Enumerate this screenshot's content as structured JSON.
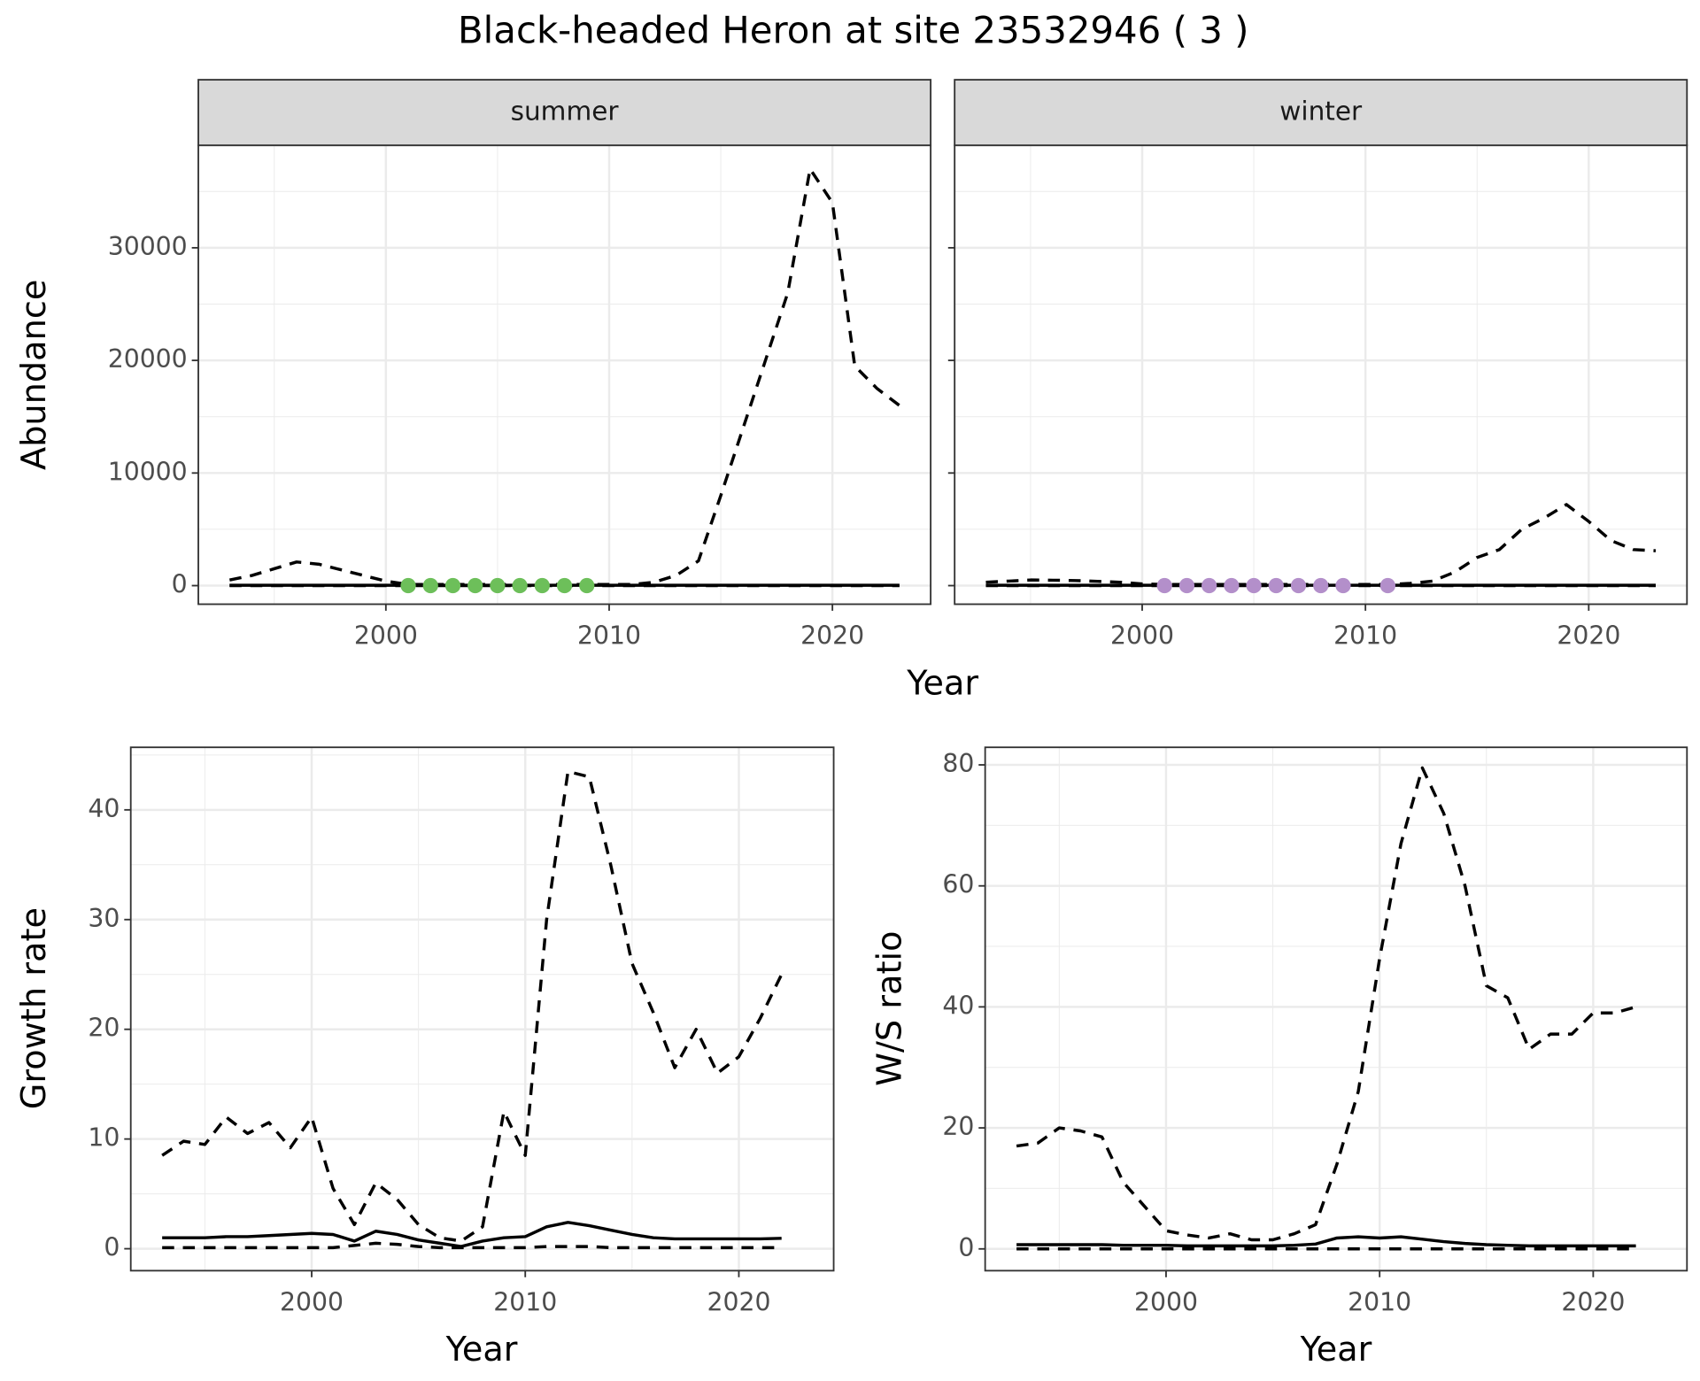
{
  "title": "Black-headed Heron at site 23532946 ( 3 )",
  "chart_data": [
    {
      "type": "line",
      "strip": "summer",
      "ylabel": "Abundance",
      "xlabel": "Year",
      "y_labels": true,
      "xlim": [
        1991.6,
        2024.4
      ],
      "ylim": [
        -1650,
        39100
      ],
      "xticks": [
        2000,
        2010,
        2020
      ],
      "yticks": [
        0,
        10000,
        20000,
        30000
      ],
      "minor_xticks": [
        1995,
        2005,
        2015
      ],
      "minor_yticks": [
        5000,
        15000,
        25000,
        35000
      ],
      "x": [
        1993,
        1994,
        1995,
        1996,
        1997,
        1998,
        1999,
        2000,
        2001,
        2002,
        2003,
        2004,
        2005,
        2006,
        2007,
        2008,
        2009,
        2010,
        2011,
        2012,
        2013,
        2014,
        2015,
        2016,
        2017,
        2018,
        2019,
        2020,
        2021,
        2022,
        2023
      ],
      "series": [
        {
          "color": "#000000",
          "dash": false,
          "values": [
            30,
            30,
            30,
            30,
            30,
            30,
            30,
            30,
            30,
            30,
            30,
            30,
            30,
            30,
            30,
            30,
            30,
            30,
            30,
            30,
            30,
            30,
            30,
            30,
            30,
            30,
            30,
            30,
            30,
            30,
            30
          ]
        },
        {
          "color": "#000000",
          "dash": true,
          "values": [
            500,
            900,
            1500,
            2100,
            1900,
            1400,
            900,
            400,
            100,
            100,
            100,
            100,
            100,
            100,
            100,
            100,
            100,
            100,
            100,
            300,
            900,
            2200,
            8000,
            14000,
            20000,
            26000,
            37000,
            34000,
            19500,
            17500,
            16000
          ]
        },
        {
          "color": "#000000",
          "dash": true,
          "values": [
            0,
            0,
            0,
            0,
            0,
            0,
            0,
            0,
            0,
            0,
            0,
            0,
            0,
            0,
            0,
            0,
            0,
            0,
            0,
            0,
            0,
            0,
            0,
            0,
            0,
            0,
            0,
            0,
            0,
            0,
            0
          ]
        }
      ],
      "points": {
        "color": "#6dbf5a",
        "x": [
          2001,
          2002,
          2003,
          2004,
          2005,
          2006,
          2007,
          2008,
          2009
        ],
        "values": [
          0,
          0,
          0,
          0,
          0,
          0,
          0,
          0,
          0
        ]
      }
    },
    {
      "type": "line",
      "strip": "winter",
      "y_labels": false,
      "xlim": [
        1991.6,
        2024.4
      ],
      "ylim": [
        -1650,
        39100
      ],
      "xticks": [
        2000,
        2010,
        2020
      ],
      "yticks": [
        0,
        10000,
        20000,
        30000
      ],
      "minor_xticks": [
        1995,
        2005,
        2015
      ],
      "minor_yticks": [
        5000,
        15000,
        25000,
        35000
      ],
      "x": [
        1993,
        1994,
        1995,
        1996,
        1997,
        1998,
        1999,
        2000,
        2001,
        2002,
        2003,
        2004,
        2005,
        2006,
        2007,
        2008,
        2009,
        2010,
        2011,
        2012,
        2013,
        2014,
        2015,
        2016,
        2017,
        2018,
        2019,
        2020,
        2021,
        2022,
        2023
      ],
      "series": [
        {
          "color": "#000000",
          "dash": false,
          "values": [
            30,
            30,
            30,
            30,
            30,
            30,
            30,
            30,
            30,
            30,
            30,
            30,
            30,
            30,
            30,
            30,
            30,
            30,
            30,
            30,
            30,
            30,
            30,
            30,
            30,
            30,
            30,
            30,
            30,
            30,
            30
          ]
        },
        {
          "color": "#000000",
          "dash": true,
          "values": [
            300,
            400,
            500,
            480,
            450,
            380,
            300,
            150,
            100,
            100,
            100,
            100,
            100,
            100,
            100,
            100,
            100,
            100,
            100,
            200,
            400,
            1200,
            2500,
            3200,
            5000,
            6000,
            7200,
            5700,
            4000,
            3200,
            3100
          ]
        },
        {
          "color": "#000000",
          "dash": true,
          "values": [
            0,
            0,
            0,
            0,
            0,
            0,
            0,
            0,
            0,
            0,
            0,
            0,
            0,
            0,
            0,
            0,
            0,
            0,
            0,
            0,
            0,
            0,
            0,
            0,
            0,
            0,
            0,
            0,
            0,
            0,
            0
          ]
        }
      ],
      "points": {
        "color": "#b38fca",
        "x": [
          2001,
          2002,
          2003,
          2004,
          2005,
          2006,
          2007,
          2008,
          2009,
          2011
        ],
        "values": [
          0,
          0,
          0,
          0,
          0,
          0,
          0,
          0,
          0,
          0
        ]
      }
    },
    {
      "type": "line",
      "ylabel": "Growth rate",
      "xlabel": "Year",
      "y_labels": true,
      "xlim": [
        1991.53,
        2024.44
      ],
      "ylim": [
        -2,
        45.7
      ],
      "xticks": [
        2000,
        2010,
        2020
      ],
      "yticks": [
        0,
        10,
        20,
        30,
        40
      ],
      "minor_xticks": [
        1995,
        2005,
        2015
      ],
      "minor_yticks": [
        5,
        15,
        25,
        35,
        45
      ],
      "x": [
        1993,
        1994,
        1995,
        1996,
        1997,
        1998,
        1999,
        2000,
        2001,
        2002,
        2003,
        2004,
        2005,
        2006,
        2007,
        2008,
        2009,
        2010,
        2011,
        2012,
        2013,
        2014,
        2015,
        2016,
        2017,
        2018,
        2019,
        2020,
        2021,
        2022
      ],
      "series": [
        {
          "color": "#000000",
          "dash": false,
          "values": [
            1.0,
            1.0,
            1.0,
            1.1,
            1.1,
            1.2,
            1.3,
            1.4,
            1.3,
            0.7,
            1.6,
            1.3,
            0.8,
            0.5,
            0.2,
            0.7,
            1.0,
            1.1,
            2.0,
            2.4,
            2.1,
            1.7,
            1.3,
            1.0,
            0.9,
            0.9,
            0.9,
            0.9,
            0.9,
            0.95
          ]
        },
        {
          "color": "#000000",
          "dash": true,
          "values": [
            8.5,
            9.8,
            9.5,
            12,
            10.5,
            11.5,
            9.2,
            12,
            5.5,
            2.2,
            6,
            4.5,
            2.2,
            1.0,
            0.7,
            2,
            12.5,
            8.5,
            30,
            43.5,
            43,
            35,
            26,
            21.5,
            16.5,
            20,
            16,
            17.5,
            21,
            25
          ]
        },
        {
          "color": "#000000",
          "dash": true,
          "values": [
            0.1,
            0.1,
            0.1,
            0.1,
            0.1,
            0.1,
            0.1,
            0.1,
            0.1,
            0.3,
            0.5,
            0.4,
            0.2,
            0.1,
            0.1,
            0.1,
            0.1,
            0.1,
            0.2,
            0.2,
            0.2,
            0.1,
            0.1,
            0.1,
            0.1,
            0.1,
            0.1,
            0.1,
            0.1,
            0.1
          ]
        }
      ]
    },
    {
      "type": "line",
      "ylabel": "W/S ratio",
      "xlabel": "Year",
      "y_labels": true,
      "xlim": [
        1991.53,
        2024.39
      ],
      "ylim": [
        -3.6,
        82.9
      ],
      "xticks": [
        2000,
        2010,
        2020
      ],
      "yticks": [
        0,
        20,
        40,
        60,
        80
      ],
      "minor_xticks": [
        1995,
        2005,
        2015
      ],
      "minor_yticks": [
        10,
        30,
        50,
        70
      ],
      "x": [
        1993,
        1994,
        1995,
        1996,
        1997,
        1998,
        1999,
        2000,
        2001,
        2002,
        2003,
        2004,
        2005,
        2006,
        2007,
        2008,
        2009,
        2010,
        2011,
        2012,
        2013,
        2014,
        2015,
        2016,
        2017,
        2018,
        2019,
        2020,
        2021,
        2022
      ],
      "series": [
        {
          "color": "#000000",
          "dash": false,
          "values": [
            0.7,
            0.7,
            0.7,
            0.7,
            0.7,
            0.6,
            0.6,
            0.6,
            0.5,
            0.5,
            0.5,
            0.5,
            0.5,
            0.6,
            0.8,
            1.8,
            2,
            1.8,
            2.0,
            1.6,
            1.2,
            0.9,
            0.7,
            0.6,
            0.5,
            0.5,
            0.5,
            0.5,
            0.5,
            0.5
          ]
        },
        {
          "color": "#000000",
          "dash": true,
          "values": [
            17,
            17.5,
            20,
            19.5,
            18.5,
            11,
            7,
            3,
            2.3,
            1.8,
            2.5,
            1.5,
            1.5,
            2.5,
            4,
            14,
            26,
            48,
            67,
            79.5,
            72,
            60,
            43.5,
            41.5,
            33,
            35.5,
            35.5,
            39,
            39,
            40
          ]
        },
        {
          "color": "#000000",
          "dash": true,
          "values": [
            0,
            0,
            0,
            0,
            0,
            0,
            0,
            0,
            0,
            0,
            0,
            0,
            0,
            0,
            0,
            0,
            0,
            0,
            0,
            0,
            0,
            0,
            0,
            0,
            0,
            0,
            0,
            0,
            0,
            0
          ]
        }
      ]
    }
  ]
}
